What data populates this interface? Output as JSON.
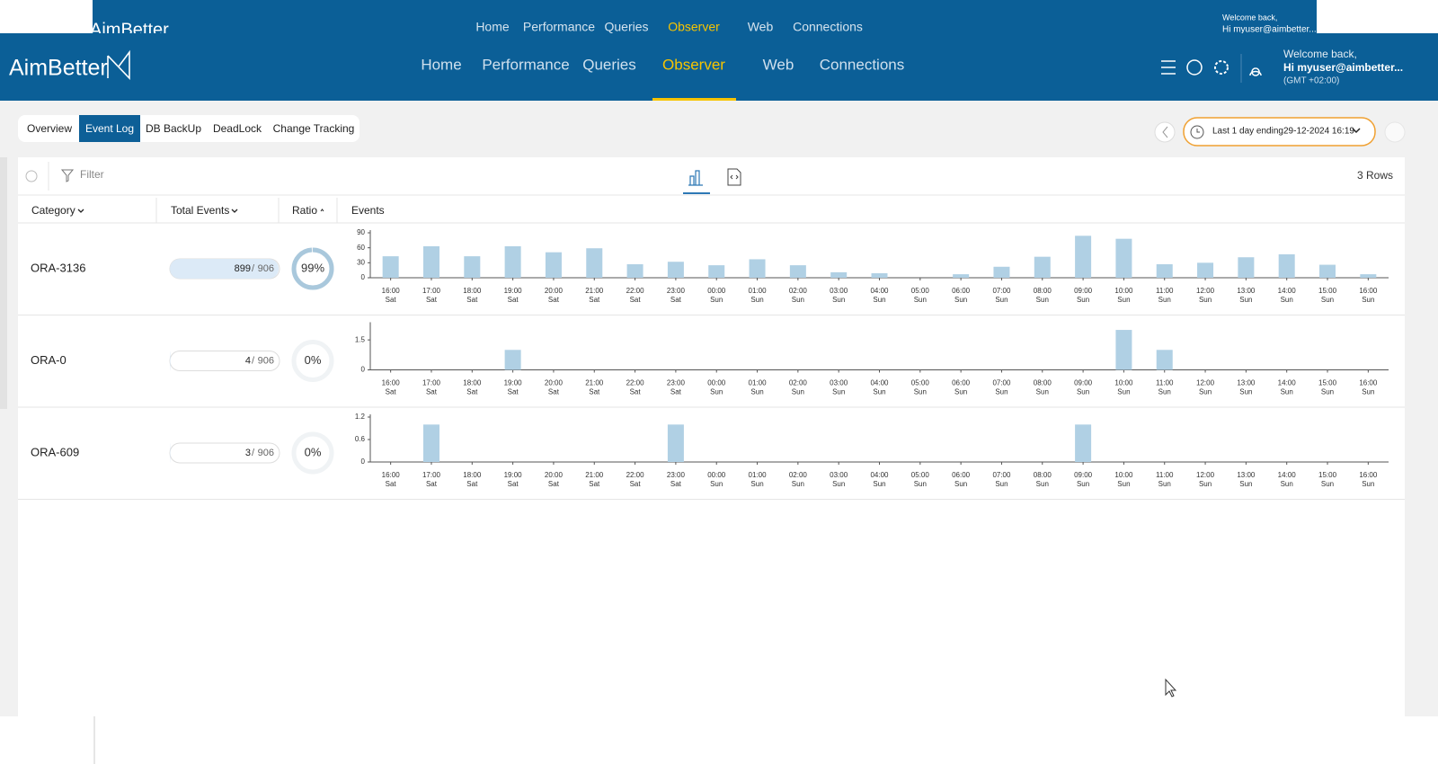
{
  "header": {
    "logo": "AimBetter",
    "nav": [
      "Home",
      "Performance",
      "Queries",
      "Observer",
      "Web",
      "Connections"
    ],
    "active": 3,
    "welcome": "Welcome back,",
    "user": "Hi myuser@aimbetter...",
    "timezone": "(GMT +02:00)"
  },
  "tabs": {
    "items": [
      "Overview",
      "Event Log",
      "DB BackUp",
      "DeadLock",
      "Change Tracking"
    ],
    "active": 1
  },
  "time_range": {
    "label": "Last 1 day ending",
    "date": "29-12-2024 16:19"
  },
  "toolbar": {
    "filter": "Filter",
    "rows": "3 Rows"
  },
  "table": {
    "columns": [
      "Category",
      "Total Events",
      "Ratio",
      "Events"
    ],
    "separator": "/",
    "hours": [
      "16:00",
      "17:00",
      "18:00",
      "19:00",
      "20:00",
      "21:00",
      "22:00",
      "23:00",
      "00:00",
      "01:00",
      "02:00",
      "03:00",
      "04:00",
      "05:00",
      "06:00",
      "07:00",
      "08:00",
      "09:00",
      "10:00",
      "11:00",
      "12:00",
      "13:00",
      "14:00",
      "15:00",
      "16:00"
    ],
    "days": [
      "Sat",
      "Sat",
      "Sat",
      "Sat",
      "Sat",
      "Sat",
      "Sat",
      "Sat",
      "Sun",
      "Sun",
      "Sun",
      "Sun",
      "Sun",
      "Sun",
      "Sun",
      "Sun",
      "Sun",
      "Sun",
      "Sun",
      "Sun",
      "Sun",
      "Sun",
      "Sun",
      "Sun",
      "Sun"
    ],
    "rows": [
      {
        "category": "ORA-3136",
        "count": 899,
        "total": 906,
        "ratio": 99,
        "ratio_label": "99%",
        "chart": {
          "type": "bar",
          "color": "#b0d0e4",
          "ylim": [
            0,
            90
          ],
          "yticks": [
            0,
            30,
            60,
            90
          ],
          "values": [
            43,
            63,
            43,
            63,
            51,
            59,
            27,
            32,
            25,
            37,
            25,
            11,
            9,
            0,
            7,
            22,
            42,
            84,
            78,
            27,
            30,
            41,
            47,
            26,
            7
          ]
        }
      },
      {
        "category": "ORA-0",
        "count": 4,
        "total": 906,
        "ratio": 0,
        "ratio_label": "0%",
        "chart": {
          "type": "bar",
          "color": "#b0d0e4",
          "ylim": [
            0,
            2.25
          ],
          "yticks": [
            0,
            1.5
          ],
          "values": [
            0,
            0,
            0,
            1,
            0,
            0,
            0,
            0,
            0,
            0,
            0,
            0,
            0,
            0,
            0,
            0,
            0,
            0,
            2,
            1,
            0,
            0,
            0,
            0,
            0
          ]
        }
      },
      {
        "category": "ORA-609",
        "count": 3,
        "total": 906,
        "ratio": 0,
        "ratio_label": "0%",
        "chart": {
          "type": "bar",
          "color": "#b0d0e4",
          "ylim": [
            0,
            1.2
          ],
          "yticks": [
            0,
            0.6,
            1.2
          ],
          "values": [
            0,
            1,
            0,
            0,
            0,
            0,
            0,
            1,
            0,
            0,
            0,
            0,
            0,
            0,
            0,
            0,
            0,
            1,
            0,
            0,
            0,
            0,
            0,
            0,
            0
          ]
        }
      }
    ]
  }
}
